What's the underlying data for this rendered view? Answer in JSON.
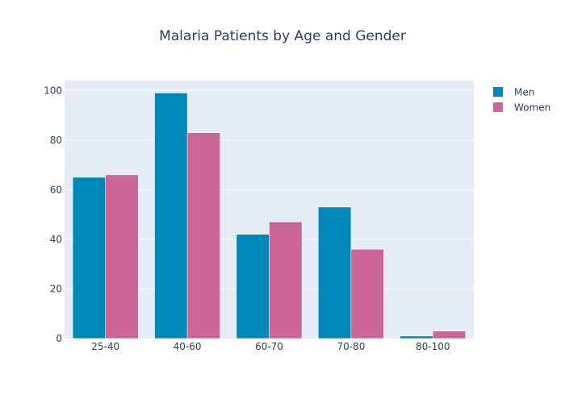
{
  "chart_data": {
    "type": "bar",
    "title": "Malaria Patients by Age and Gender",
    "xlabel": "",
    "ylabel": "",
    "categories": [
      "25-40",
      "40-60",
      "60-70",
      "70-80",
      "80-100"
    ],
    "series": [
      {
        "name": "Men",
        "values": [
          65,
          99,
          42,
          53,
          1
        ],
        "color": "#0088b8"
      },
      {
        "name": "Women",
        "values": [
          66,
          83,
          47,
          36,
          3
        ],
        "color": "#cc6699"
      }
    ],
    "ylim": [
      0,
      104
    ],
    "yticks": [
      0,
      20,
      40,
      60,
      80,
      100
    ],
    "grid": true,
    "legend_position": "top-right",
    "plot_background": "#e5ecf6"
  }
}
